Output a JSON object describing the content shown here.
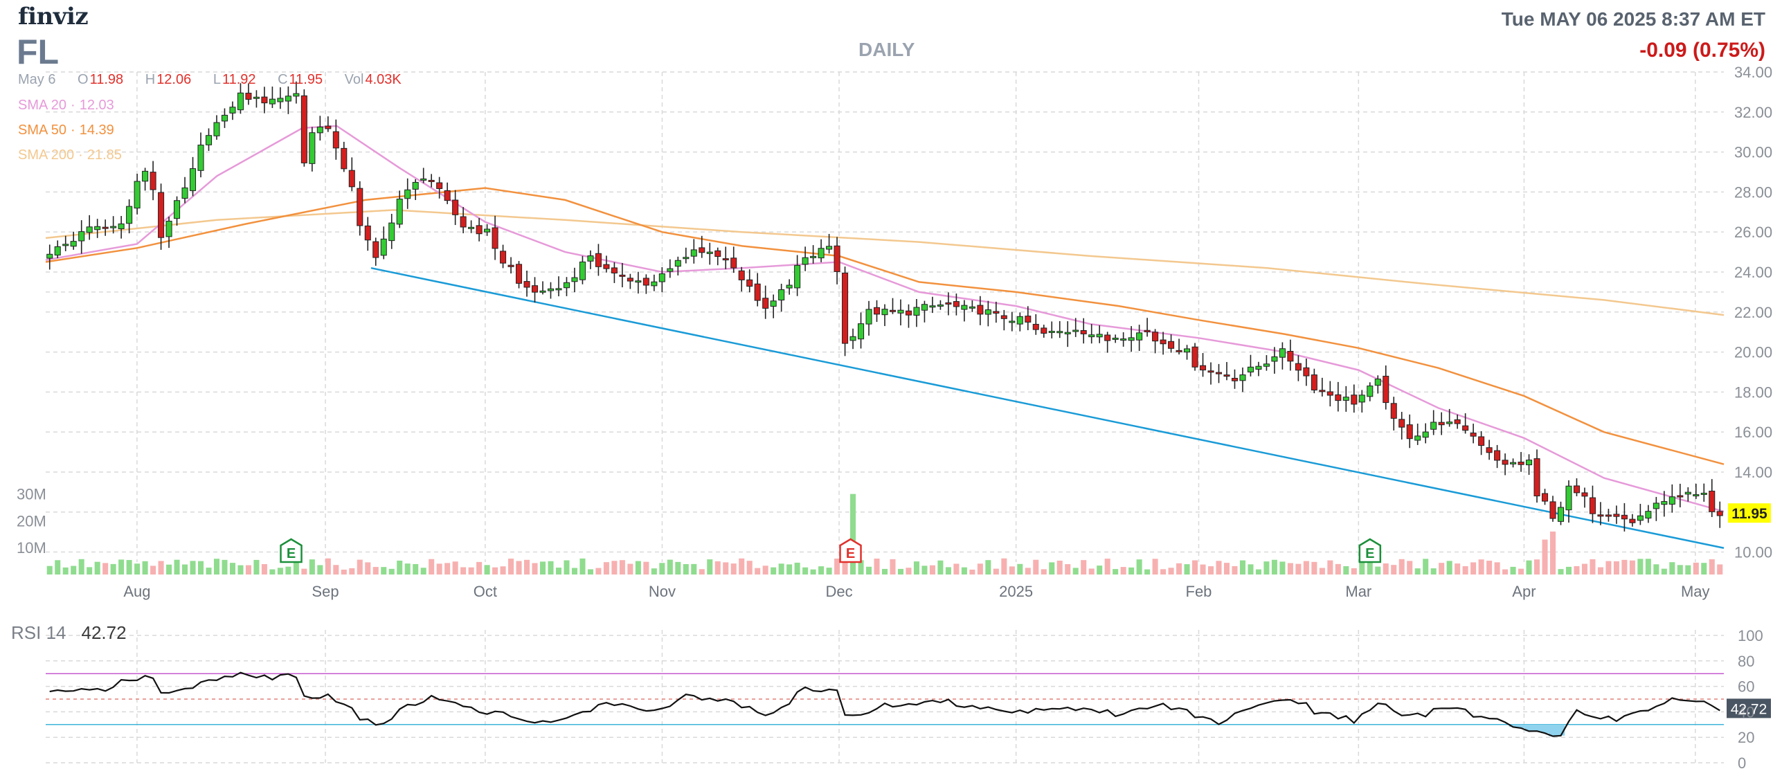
{
  "header": {
    "brand": "finviz",
    "ticker": "FL",
    "timeframe": "DAILY",
    "datetime": "Tue MAY 06 2025 8:37 AM ET",
    "change": "-0.09 (0.75%)"
  },
  "ohlc": {
    "date": "May 6",
    "open_label": "O",
    "open": "11.98",
    "high_label": "H",
    "high": "12.06",
    "low_label": "L",
    "low": "11.92",
    "close_label": "C",
    "close": "11.95",
    "vol_label": "Vol",
    "volume": "4.03K"
  },
  "indicators": {
    "sma20": {
      "label": "SMA 20",
      "value": "12.03"
    },
    "sma50": {
      "label": "SMA 50",
      "value": "14.39"
    },
    "sma200": {
      "label": "SMA 200",
      "value": "21.85"
    }
  },
  "rsi": {
    "label": "RSI 14",
    "value": "42.72"
  },
  "colors": {
    "up": "#33cc33",
    "down": "#d41f1f",
    "up_volume": "#8fdc8f",
    "down_volume": "#f7b0b0",
    "sma20": "#e69ad9",
    "sma50": "#f2913e",
    "sma200": "#f3c88f",
    "trendline": "#1a9bd7",
    "price_tag": "#ffff00",
    "rsi_overbought": "#c45ad1",
    "rsi_oversold": "#3db4d8",
    "grid": "#d9d9d9",
    "earnings": "#1b8f3a",
    "earnings_post": "#e0312c"
  },
  "chart_data": {
    "type": "candlestick",
    "x_range": [
      "2024-07-16",
      "2025-05-06"
    ],
    "price_axis": {
      "ticks": [
        "34.00",
        "32.00",
        "30.00",
        "28.00",
        "26.00",
        "24.00",
        "22.00",
        "20.00",
        "18.00",
        "16.00",
        "14.00",
        "10.00"
      ],
      "min": 9.5,
      "max": 34
    },
    "time_axis": [
      {
        "label": "Aug",
        "date": "2024-08-01"
      },
      {
        "label": "Sep",
        "date": "2024-09-03"
      },
      {
        "label": "Oct",
        "date": "2024-10-01"
      },
      {
        "label": "Nov",
        "date": "2024-11-01"
      },
      {
        "label": "Dec",
        "date": "2024-12-02"
      },
      {
        "label": "2025",
        "date": "2025-01-02"
      },
      {
        "label": "Feb",
        "date": "2025-02-03"
      },
      {
        "label": "Mar",
        "date": "2025-03-03"
      },
      {
        "label": "Apr",
        "date": "2025-04-01"
      },
      {
        "label": "May",
        "date": "2025-05-01"
      }
    ],
    "volume_axis": {
      "ticks": [
        "30M",
        "20M",
        "10M"
      ],
      "max": 33
    },
    "price_keypoints": [
      [
        "2024-07-16",
        25.0
      ],
      [
        "2024-07-22",
        26.1
      ],
      [
        "2024-07-29",
        26.4
      ],
      [
        "2024-07-31",
        28.5
      ],
      [
        "2024-08-01",
        29.0
      ],
      [
        "2024-08-05",
        25.6
      ],
      [
        "2024-08-07",
        27.6
      ],
      [
        "2024-08-09",
        29.0
      ],
      [
        "2024-08-13",
        30.7
      ],
      [
        "2024-08-15",
        32.0
      ],
      [
        "2024-08-19",
        32.8
      ],
      [
        "2024-08-23",
        32.5
      ],
      [
        "2024-08-26",
        32.8
      ],
      [
        "2024-08-28",
        32.9
      ],
      [
        "2024-08-29",
        29.5
      ],
      [
        "2024-08-30",
        31.0
      ],
      [
        "2024-09-03",
        31.3
      ],
      [
        "2024-09-05",
        29.0
      ],
      [
        "2024-09-09",
        26.4
      ],
      [
        "2024-09-11",
        24.6
      ],
      [
        "2024-09-13",
        26.6
      ],
      [
        "2024-09-17",
        28.0
      ],
      [
        "2024-09-19",
        28.8
      ],
      [
        "2024-09-23",
        28.0
      ],
      [
        "2024-09-26",
        26.3
      ],
      [
        "2024-10-01",
        26.0
      ],
      [
        "2024-10-03",
        24.5
      ],
      [
        "2024-10-07",
        23.4
      ],
      [
        "2024-10-10",
        22.9
      ],
      [
        "2024-10-15",
        23.4
      ],
      [
        "2024-10-18",
        24.8
      ],
      [
        "2024-10-24",
        23.8
      ],
      [
        "2024-10-29",
        23.4
      ],
      [
        "2024-11-01",
        24.0
      ],
      [
        "2024-11-06",
        25.1
      ],
      [
        "2024-11-12",
        24.6
      ],
      [
        "2024-11-15",
        23.3
      ],
      [
        "2024-11-19",
        22.3
      ],
      [
        "2024-11-22",
        23.3
      ],
      [
        "2024-11-26",
        24.6
      ],
      [
        "2024-11-29",
        25.3
      ],
      [
        "2024-12-02",
        24.1
      ],
      [
        "2024-12-03",
        20.4
      ],
      [
        "2024-12-06",
        22.0
      ],
      [
        "2024-12-13",
        22.0
      ],
      [
        "2024-12-20",
        22.4
      ],
      [
        "2024-12-27",
        22.0
      ],
      [
        "2025-01-02",
        21.6
      ],
      [
        "2025-01-07",
        20.9
      ],
      [
        "2025-01-13",
        21.2
      ],
      [
        "2025-01-17",
        20.6
      ],
      [
        "2025-01-24",
        21.0
      ],
      [
        "2025-01-30",
        20.2
      ],
      [
        "2025-02-05",
        19.0
      ],
      [
        "2025-02-10",
        18.7
      ],
      [
        "2025-02-14",
        19.5
      ],
      [
        "2025-02-18",
        20.0
      ],
      [
        "2025-02-21",
        18.8
      ],
      [
        "2025-02-27",
        17.7
      ],
      [
        "2025-03-03",
        17.5
      ],
      [
        "2025-03-06",
        18.5
      ],
      [
        "2025-03-07",
        17.6
      ],
      [
        "2025-03-12",
        15.8
      ],
      [
        "2025-03-18",
        16.5
      ],
      [
        "2025-03-24",
        15.8
      ],
      [
        "2025-03-28",
        14.3
      ],
      [
        "2025-04-02",
        14.5
      ],
      [
        "2025-04-03",
        12.8
      ],
      [
        "2025-04-07",
        11.6
      ],
      [
        "2025-04-09",
        13.2
      ],
      [
        "2025-04-14",
        11.8
      ],
      [
        "2025-04-21",
        11.5
      ],
      [
        "2025-04-24",
        12.3
      ],
      [
        "2025-04-28",
        12.9
      ],
      [
        "2025-05-02",
        12.8
      ],
      [
        "2025-05-06",
        11.95
      ]
    ],
    "sma20": [
      [
        "2024-07-16",
        24.6
      ],
      [
        "2024-08-01",
        25.4
      ],
      [
        "2024-08-15",
        28.8
      ],
      [
        "2024-08-30",
        31.2
      ],
      [
        "2024-09-05",
        31.3
      ],
      [
        "2024-09-16",
        29.2
      ],
      [
        "2024-10-01",
        26.5
      ],
      [
        "2024-10-15",
        25.0
      ],
      [
        "2024-11-01",
        24.0
      ],
      [
        "2024-11-15",
        24.2
      ],
      [
        "2024-12-02",
        24.5
      ],
      [
        "2024-12-16",
        23.0
      ],
      [
        "2025-01-02",
        22.3
      ],
      [
        "2025-01-15",
        21.4
      ],
      [
        "2025-02-03",
        20.7
      ],
      [
        "2025-02-18",
        20.0
      ],
      [
        "2025-03-03",
        19.1
      ],
      [
        "2025-03-17",
        17.2
      ],
      [
        "2025-04-01",
        15.7
      ],
      [
        "2025-04-15",
        13.7
      ],
      [
        "2025-05-06",
        12.03
      ]
    ],
    "sma50": [
      [
        "2024-07-16",
        24.5
      ],
      [
        "2024-08-01",
        25.2
      ],
      [
        "2024-08-20",
        26.4
      ],
      [
        "2024-09-10",
        27.6
      ],
      [
        "2024-10-01",
        28.2
      ],
      [
        "2024-10-15",
        27.6
      ],
      [
        "2024-11-01",
        26.0
      ],
      [
        "2024-11-15",
        25.3
      ],
      [
        "2024-12-02",
        24.8
      ],
      [
        "2024-12-16",
        23.5
      ],
      [
        "2025-01-02",
        23.0
      ],
      [
        "2025-01-20",
        22.3
      ],
      [
        "2025-02-03",
        21.6
      ],
      [
        "2025-02-18",
        20.9
      ],
      [
        "2025-03-03",
        20.2
      ],
      [
        "2025-03-17",
        19.2
      ],
      [
        "2025-04-01",
        17.8
      ],
      [
        "2025-04-15",
        16.0
      ],
      [
        "2025-05-06",
        14.39
      ]
    ],
    "sma200": [
      [
        "2024-07-16",
        25.7
      ],
      [
        "2024-08-15",
        26.6
      ],
      [
        "2024-09-15",
        27.1
      ],
      [
        "2024-10-15",
        26.6
      ],
      [
        "2024-11-15",
        26.0
      ],
      [
        "2024-12-16",
        25.5
      ],
      [
        "2025-01-15",
        24.8
      ],
      [
        "2025-02-15",
        24.2
      ],
      [
        "2025-03-15",
        23.4
      ],
      [
        "2025-04-15",
        22.6
      ],
      [
        "2025-05-06",
        21.85
      ]
    ],
    "trendline": [
      [
        "2024-09-11",
        24.2
      ],
      [
        "2025-05-06",
        10.2
      ]
    ],
    "earnings": [
      {
        "date": "2024-08-28",
        "label": "E"
      },
      {
        "date": "2024-12-04",
        "label": "E"
      },
      {
        "date": "2025-03-05",
        "label": "E"
      }
    ],
    "volume_spikes": [
      [
        "2024-12-04",
        30
      ],
      [
        "2025-04-07",
        16
      ],
      [
        "2025-04-04",
        13
      ]
    ],
    "rsi_axis": {
      "ticks": [
        100,
        80,
        60,
        40,
        20,
        0
      ],
      "overbought": 70,
      "oversold": 30,
      "mid": 50
    },
    "rsi_keypoints": [
      [
        "2024-07-16",
        55
      ],
      [
        "2024-07-25",
        58
      ],
      [
        "2024-08-01",
        68
      ],
      [
        "2024-08-05",
        54
      ],
      [
        "2024-08-09",
        58
      ],
      [
        "2024-08-15",
        68
      ],
      [
        "2024-08-20",
        70
      ],
      [
        "2024-08-23",
        66
      ],
      [
        "2024-08-28",
        69
      ],
      [
        "2024-08-29",
        52
      ],
      [
        "2024-09-03",
        52
      ],
      [
        "2024-09-06",
        42
      ],
      [
        "2024-09-11",
        30
      ],
      [
        "2024-09-16",
        42
      ],
      [
        "2024-09-20",
        52
      ],
      [
        "2024-09-25",
        46
      ],
      [
        "2024-10-01",
        40
      ],
      [
        "2024-10-08",
        33
      ],
      [
        "2024-10-15",
        34
      ],
      [
        "2024-10-22",
        48
      ],
      [
        "2024-10-29",
        40
      ],
      [
        "2024-11-05",
        52
      ],
      [
        "2024-11-12",
        48
      ],
      [
        "2024-11-19",
        36
      ],
      [
        "2024-11-26",
        58
      ],
      [
        "2024-12-02",
        56
      ],
      [
        "2024-12-03",
        36
      ],
      [
        "2024-12-10",
        45
      ],
      [
        "2024-12-20",
        48
      ],
      [
        "2025-01-02",
        40
      ],
      [
        "2025-01-10",
        44
      ],
      [
        "2025-01-20",
        38
      ],
      [
        "2025-01-27",
        46
      ],
      [
        "2025-02-06",
        32
      ],
      [
        "2025-02-12",
        44
      ],
      [
        "2025-02-18",
        51
      ],
      [
        "2025-02-25",
        38
      ],
      [
        "2025-03-03",
        33
      ],
      [
        "2025-03-06",
        46
      ],
      [
        "2025-03-12",
        36
      ],
      [
        "2025-03-20",
        44
      ],
      [
        "2025-03-28",
        32
      ],
      [
        "2025-04-03",
        24
      ],
      [
        "2025-04-08",
        22
      ],
      [
        "2025-04-10",
        40
      ],
      [
        "2025-04-17",
        34
      ],
      [
        "2025-04-24",
        44
      ],
      [
        "2025-04-28",
        49
      ],
      [
        "2025-05-02",
        48
      ],
      [
        "2025-05-06",
        42.72
      ]
    ]
  }
}
